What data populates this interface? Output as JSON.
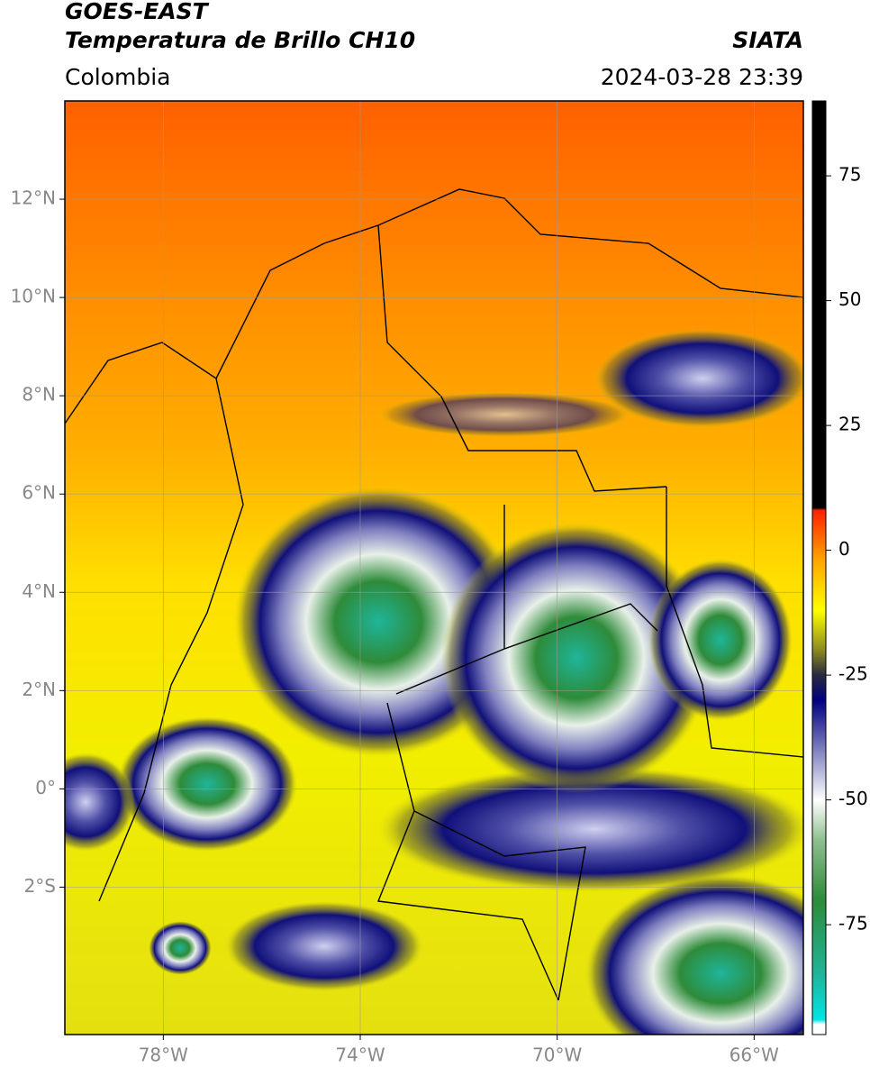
{
  "header": {
    "title": "GOES-EAST",
    "subtitle": "Temperatura de Brillo CH10",
    "source": "SIATA",
    "region": "Colombia",
    "timestamp": "2024-03-28 23:39"
  },
  "map": {
    "lon_range": [
      -80,
      -65
    ],
    "lat_range": [
      -5,
      14
    ],
    "lon_ticks": [
      {
        "value": -78,
        "label": "78°W"
      },
      {
        "value": -74,
        "label": "74°W"
      },
      {
        "value": -70,
        "label": "70°W"
      },
      {
        "value": -66,
        "label": "66°W"
      }
    ],
    "lat_ticks": [
      {
        "value": 12,
        "label": "12°N"
      },
      {
        "value": 10,
        "label": "10°N"
      },
      {
        "value": 8,
        "label": "8°N"
      },
      {
        "value": 6,
        "label": "6°N"
      },
      {
        "value": 4,
        "label": "4°N"
      },
      {
        "value": 2,
        "label": "2°N"
      },
      {
        "value": 0,
        "label": "0°"
      },
      {
        "value": -2,
        "label": "2°S"
      }
    ],
    "grid": true
  },
  "colorbar": {
    "range": [
      -97,
      90
    ],
    "ticks": [
      75,
      50,
      25,
      0,
      -25,
      -50,
      -75
    ],
    "stops": [
      {
        "value": -97,
        "color": "#ffffff"
      },
      {
        "value": -95,
        "color": "#ffffff"
      },
      {
        "value": -94,
        "color": "#00e5e5"
      },
      {
        "value": -85,
        "color": "#1fb59a"
      },
      {
        "value": -70,
        "color": "#2e8b3a"
      },
      {
        "value": -58,
        "color": "#8fbf8f"
      },
      {
        "value": -50,
        "color": "#ffffff"
      },
      {
        "value": -40,
        "color": "#8080c0"
      },
      {
        "value": -30,
        "color": "#000080"
      },
      {
        "value": -25,
        "color": "#2a2a40"
      },
      {
        "value": -20,
        "color": "#8a8a20"
      },
      {
        "value": -12,
        "color": "#ffff00"
      },
      {
        "value": -2,
        "color": "#ffa500"
      },
      {
        "value": 8,
        "color": "#ff2000"
      },
      {
        "value": 8.5,
        "color": "#000000"
      },
      {
        "value": 90,
        "color": "#000000"
      }
    ]
  }
}
